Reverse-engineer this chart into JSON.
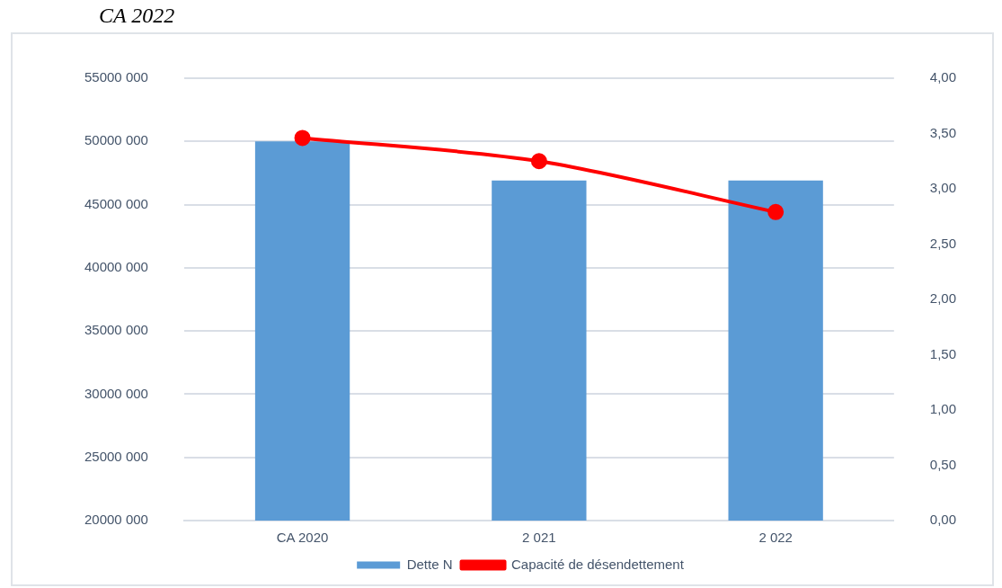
{
  "chart_data": {
    "type": "bar",
    "title": "CA 2022",
    "categories": [
      "CA 2020",
      "2 021",
      "2 022"
    ],
    "series": [
      {
        "name": "Dette N",
        "color": "#5b9bd5",
        "values": [
          50000000,
          46900000,
          46900000
        ]
      },
      {
        "name": "Capacité de désendettement",
        "type": "line",
        "axis": "y2",
        "color": "#ff0000",
        "values": [
          3.46,
          3.25,
          2.79
        ]
      }
    ],
    "ylim": [
      20000000,
      55000000
    ],
    "yticks": [
      {
        "value": 20000000,
        "label": "20000 000"
      },
      {
        "value": 25000000,
        "label": "25000 000"
      },
      {
        "value": 30000000,
        "label": "30000 000"
      },
      {
        "value": 35000000,
        "label": "35000 000"
      },
      {
        "value": 40000000,
        "label": "40000 000"
      },
      {
        "value": 45000000,
        "label": "45000 000"
      },
      {
        "value": 50000000,
        "label": "50000 000"
      },
      {
        "value": 55000000,
        "label": "55000 000"
      }
    ],
    "y2lim": [
      0,
      4
    ],
    "y2ticks": [
      {
        "value": 0,
        "label": "0,00"
      },
      {
        "value": 0.5,
        "label": "0,50"
      },
      {
        "value": 1,
        "label": "1,00"
      },
      {
        "value": 1.5,
        "label": "1,50"
      },
      {
        "value": 2,
        "label": "2,00"
      },
      {
        "value": 2.5,
        "label": "2,50"
      },
      {
        "value": 3,
        "label": "3,00"
      },
      {
        "value": 3.5,
        "label": "3,50"
      },
      {
        "value": 4,
        "label": "4,00"
      }
    ],
    "grid": "y",
    "legend": "bottom",
    "marker": "circle"
  }
}
